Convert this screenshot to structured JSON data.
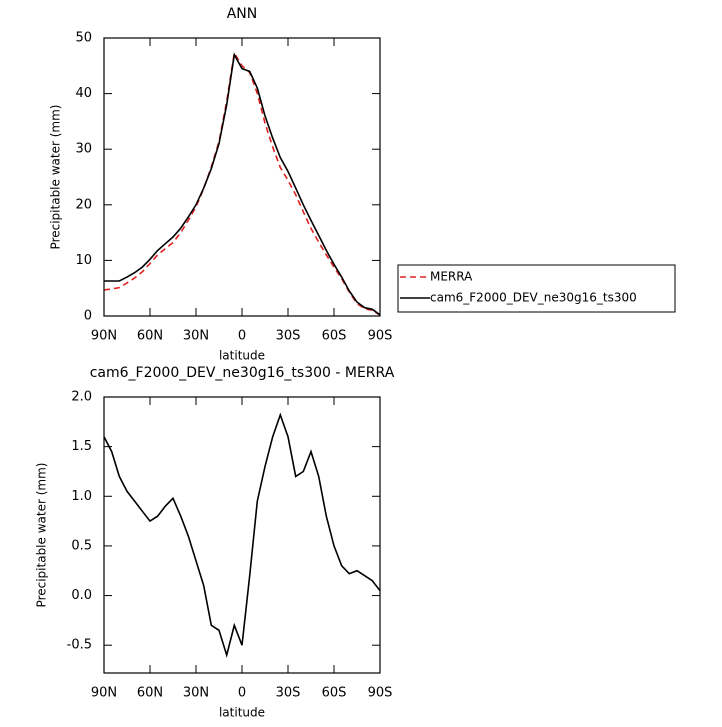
{
  "chart_data": [
    {
      "type": "line",
      "title": "ANN",
      "xlabel": "latitude",
      "ylabel": "Precipitable water (mm)",
      "x": [
        90,
        85,
        80,
        75,
        70,
        65,
        60,
        55,
        50,
        45,
        40,
        35,
        30,
        25,
        20,
        15,
        10,
        5,
        0,
        -5,
        -10,
        -15,
        -20,
        -25,
        -30,
        -35,
        -40,
        -45,
        -50,
        -55,
        -60,
        -65,
        -70,
        -75,
        -80,
        -85,
        -90
      ],
      "series": [
        {
          "name": "MERRA",
          "color": "#e02020",
          "dash": true,
          "values": [
            4.7,
            4.85,
            5.1,
            5.95,
            6.85,
            7.95,
            9.45,
            11.0,
            12.1,
            13.2,
            15.0,
            17.2,
            19.65,
            22.9,
            26.8,
            31.35,
            38.6,
            47.3,
            45.0,
            43.8,
            40.05,
            34.7,
            30.4,
            26.7,
            24.4,
            21.8,
            18.75,
            15.75,
            13.3,
            11.0,
            8.8,
            6.7,
            4.3,
            2.25,
            1.3,
            1.05,
            0.15
          ]
        },
        {
          "name": "cam6_F2000_DEV_ne30g16_ts300",
          "color": "#000000",
          "dash": false,
          "values": [
            6.3,
            6.3,
            6.3,
            7.0,
            7.8,
            8.8,
            10.2,
            11.8,
            13,
            14.2,
            15.8,
            17.8,
            20,
            23,
            26.5,
            31,
            38,
            47,
            44.5,
            44,
            41,
            36,
            32,
            28.5,
            26,
            23,
            20,
            17.2,
            14.5,
            11.8,
            9.3,
            7,
            4.5,
            2.5,
            1.5,
            1.2,
            0.2
          ]
        }
      ],
      "xlim": [
        90,
        -90
      ],
      "xticks": [
        {
          "value": 90,
          "label": "90N"
        },
        {
          "value": 60,
          "label": "60N"
        },
        {
          "value": 30,
          "label": "30N"
        },
        0,
        {
          "value": -30,
          "label": "30S"
        },
        {
          "value": -60,
          "label": "60S"
        },
        {
          "value": -90,
          "label": "90S"
        }
      ],
      "ylim": [
        0,
        50
      ],
      "yticks": [
        0,
        10,
        20,
        30,
        40,
        50
      ],
      "legend": "outside-right"
    },
    {
      "type": "line",
      "title": "cam6_F2000_DEV_ne30g16_ts300 - MERRA",
      "xlabel": "latitude",
      "ylabel": "Precipitable water (mm)",
      "x": [
        90,
        85,
        80,
        75,
        70,
        65,
        60,
        55,
        50,
        45,
        40,
        35,
        30,
        25,
        20,
        15,
        10,
        5,
        0,
        -5,
        -10,
        -15,
        -20,
        -25,
        -30,
        -35,
        -40,
        -45,
        -50,
        -55,
        -60,
        -65,
        -70,
        -75,
        -80,
        -85,
        -90
      ],
      "series": [
        {
          "color": "#000000",
          "dash": false,
          "values": [
            1.6,
            1.45,
            1.2,
            1.05,
            0.95,
            0.85,
            0.75,
            0.8,
            0.9,
            0.98,
            0.8,
            0.6,
            0.35,
            0.1,
            -0.3,
            -0.35,
            -0.6,
            -0.3,
            -0.5,
            0.2,
            0.95,
            1.3,
            1.6,
            1.82,
            1.6,
            1.2,
            1.25,
            1.45,
            1.2,
            0.8,
            0.5,
            0.3,
            0.22,
            0.25,
            0.2,
            0.15,
            0.05
          ]
        }
      ],
      "xlim": [
        90,
        -90
      ],
      "xticks": [
        {
          "value": 90,
          "label": "90N"
        },
        {
          "value": 60,
          "label": "60N"
        },
        {
          "value": 30,
          "label": "30N"
        },
        0,
        {
          "value": -30,
          "label": "30S"
        },
        {
          "value": -60,
          "label": "60S"
        },
        {
          "value": -90,
          "label": "90S"
        }
      ],
      "ylim": [
        -0.78,
        2.0
      ],
      "yticks": [
        {
          "value": -0.5,
          "label": "-0.5"
        },
        {
          "value": 0,
          "label": "0.0"
        },
        {
          "value": 0.5,
          "label": "0.5"
        },
        {
          "value": 1,
          "label": "1.0"
        },
        {
          "value": 1.5,
          "label": "1.5"
        },
        {
          "value": 2,
          "label": "2.0"
        }
      ]
    }
  ]
}
